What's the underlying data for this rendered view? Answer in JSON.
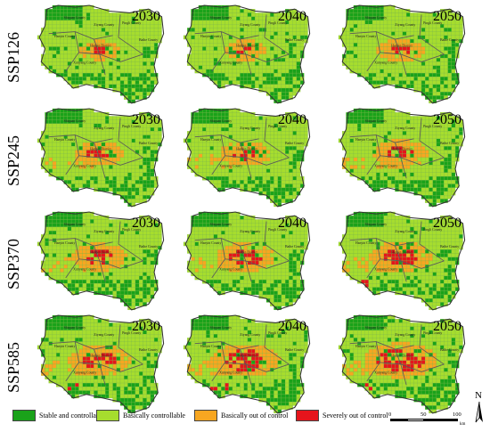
{
  "colors": {
    "stable": "#1aa21a",
    "basic": "#a6dd2e",
    "basic_out": "#f7a621",
    "severe": "#e6141c",
    "boundary": "#5a5a5a"
  },
  "rows": [
    {
      "label": "SSP126",
      "scenario_index": 0
    },
    {
      "label": "SSP245",
      "scenario_index": 1
    },
    {
      "label": "SSP370",
      "scenario_index": 2
    },
    {
      "label": "SSP585",
      "scenario_index": 3
    }
  ],
  "years": [
    "2030",
    "2040",
    "2050"
  ],
  "county_labels": [
    "Shiquan County",
    "Hanyin County",
    "Hanbin District",
    "Baihe County",
    "Ziyang County",
    "Xunyang County",
    "Pingli County"
  ],
  "legend": [
    {
      "label": "Stable and controllable",
      "color_key": "stable"
    },
    {
      "label": "Basically controllable",
      "color_key": "basic"
    },
    {
      "label": "Basically out of control",
      "color_key": "basic_out"
    },
    {
      "label": "Severely out of control",
      "color_key": "severe"
    }
  ],
  "scale_bar": {
    "ticks": [
      "0",
      "50",
      "100"
    ],
    "unit": "km"
  },
  "north_arrow": {
    "label": "N"
  },
  "map_data": {
    "type": "choropleth-grid",
    "classes": [
      "Stable and controllable",
      "Basically controllable",
      "Basically out of control",
      "Severely out of control"
    ],
    "severity_by_row_and_year": [
      [
        0.2,
        0.25,
        0.35
      ],
      [
        0.4,
        0.45,
        0.55
      ],
      [
        0.55,
        0.6,
        0.7
      ],
      [
        0.7,
        0.8,
        0.9
      ]
    ]
  }
}
